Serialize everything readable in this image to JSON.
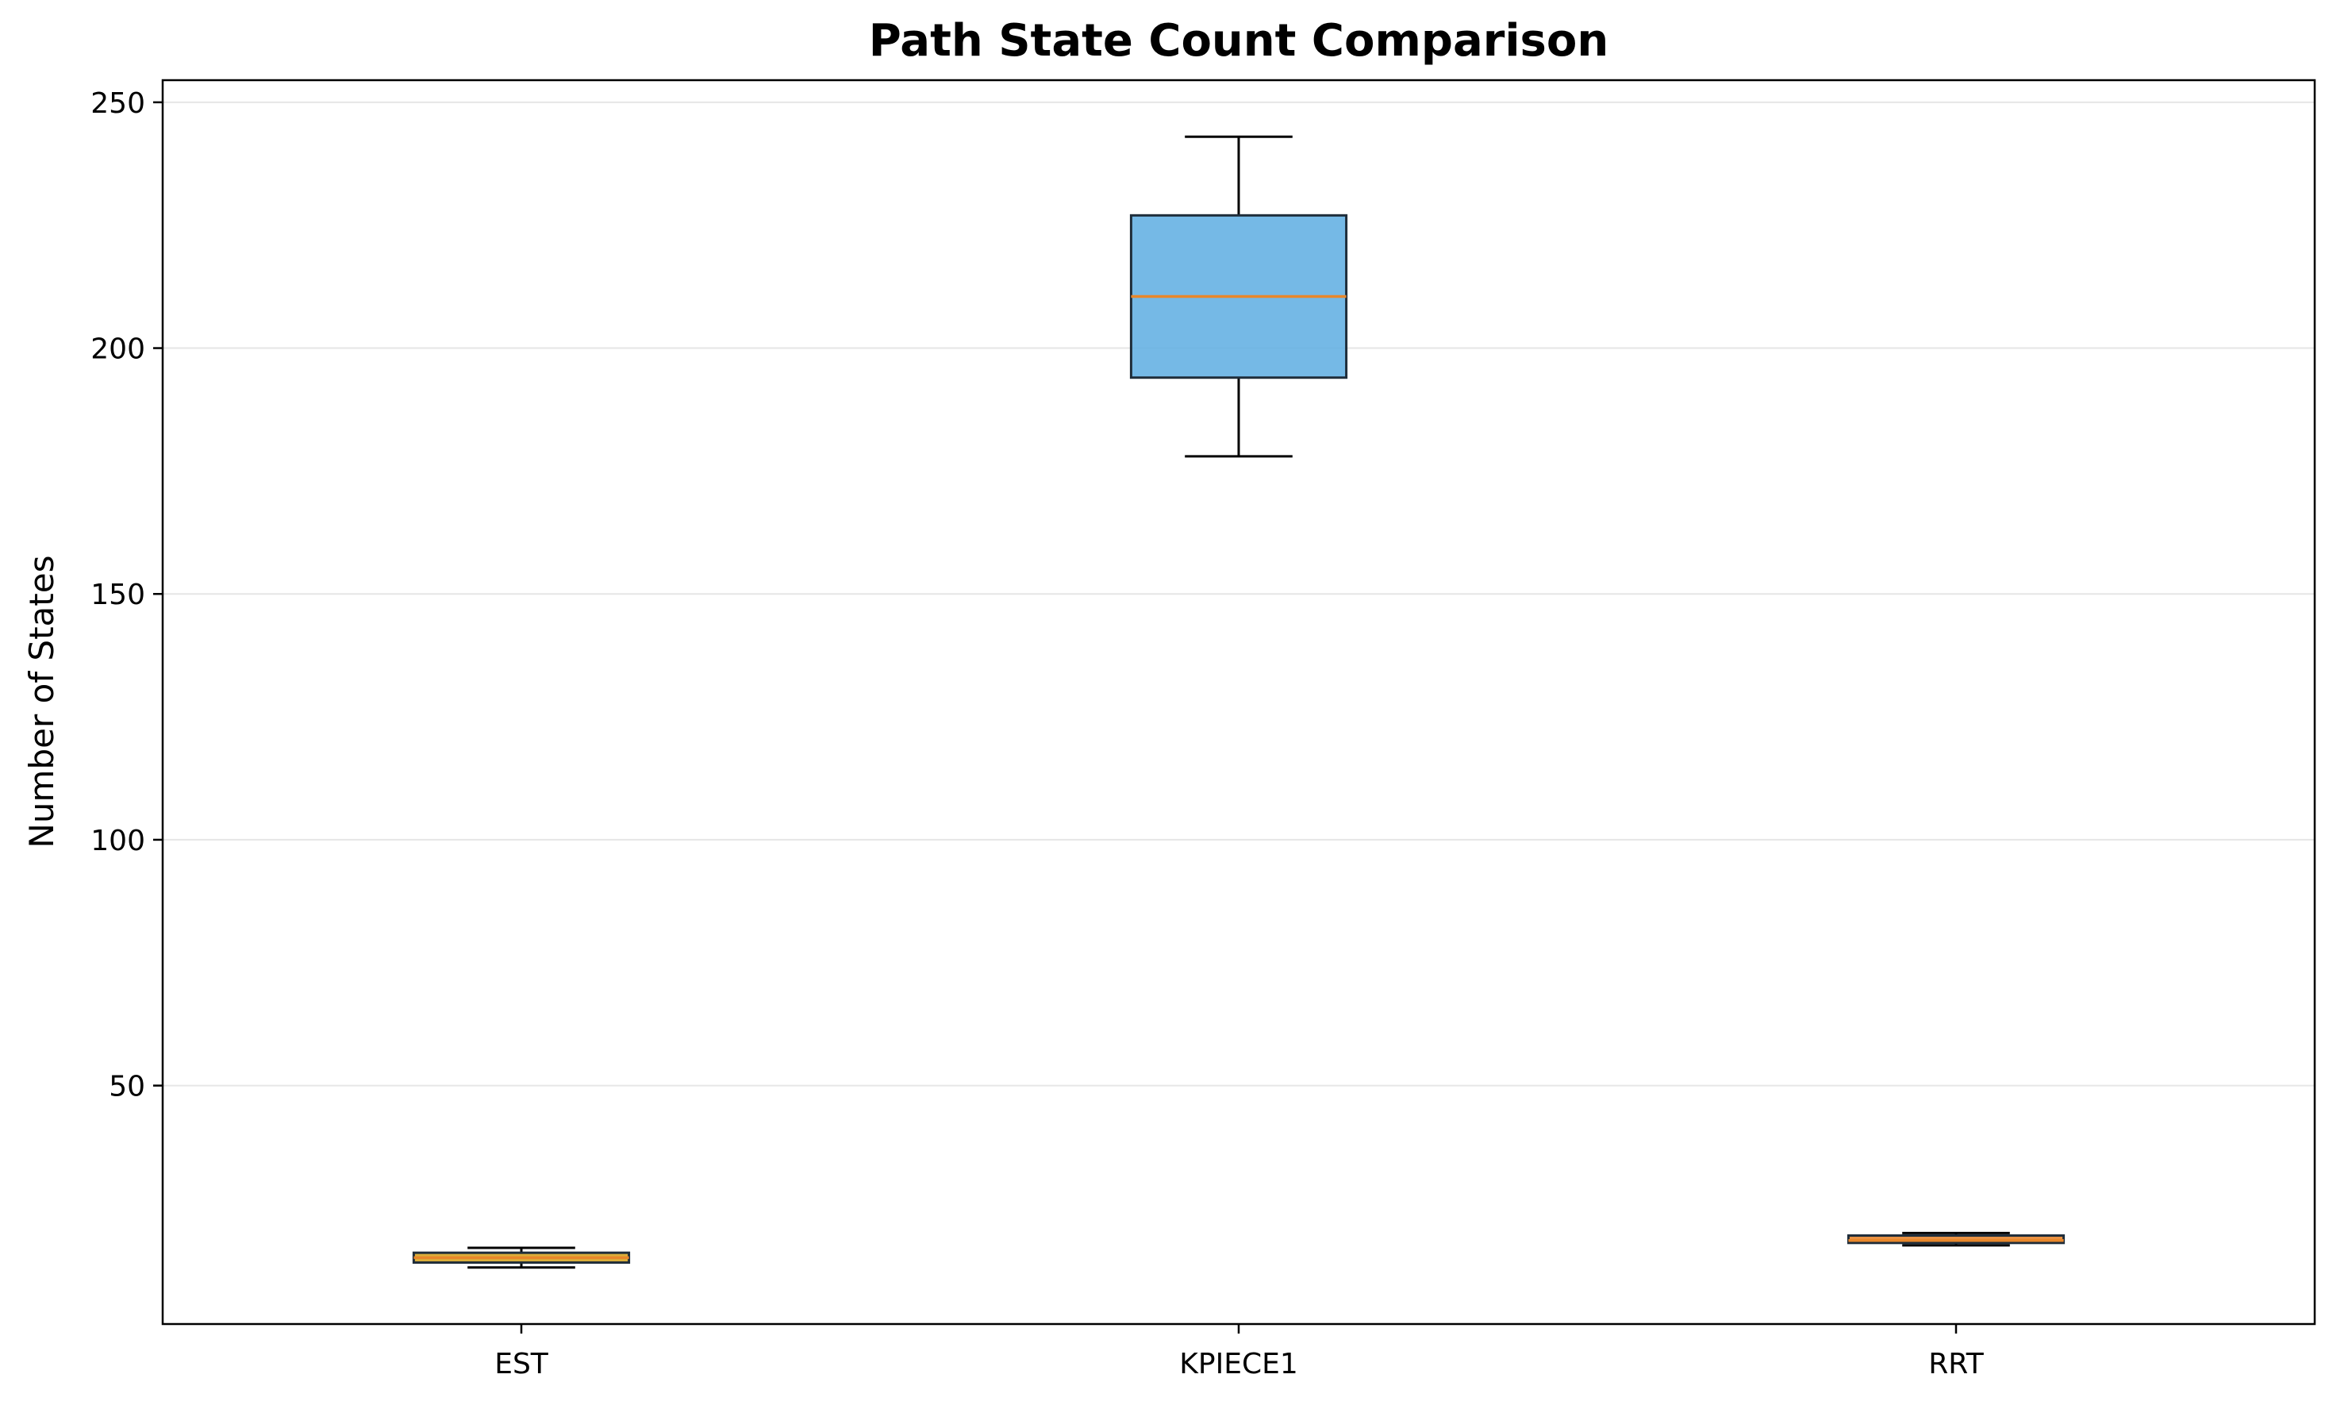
{
  "chart_data": {
    "type": "box",
    "title": "Path State Count Comparison",
    "xlabel": "",
    "ylabel": "Number of States",
    "ylim": [
      1.5,
      254.5
    ],
    "yticks": [
      50,
      100,
      150,
      200,
      250
    ],
    "grid": {
      "y": true,
      "x": false
    },
    "categories": [
      "EST",
      "KPIECE1",
      "RRT"
    ],
    "boxes": [
      {
        "category": "EST",
        "whisker_low": 13,
        "q1": 14,
        "median": 15,
        "q3": 16,
        "whisker_high": 17,
        "color": "#D4A017"
      },
      {
        "category": "KPIECE1",
        "whisker_low": 178,
        "q1": 194,
        "median": 210.5,
        "q3": 227,
        "whisker_high": 243,
        "color": "#5DADE2"
      },
      {
        "category": "RRT",
        "whisker_low": 17.5,
        "q1": 18,
        "median": 18.5,
        "q3": 19.5,
        "whisker_high": 20,
        "color": "#E67E22"
      }
    ],
    "median_color": "#E8872A",
    "grid_color": "#e6e6e6"
  }
}
